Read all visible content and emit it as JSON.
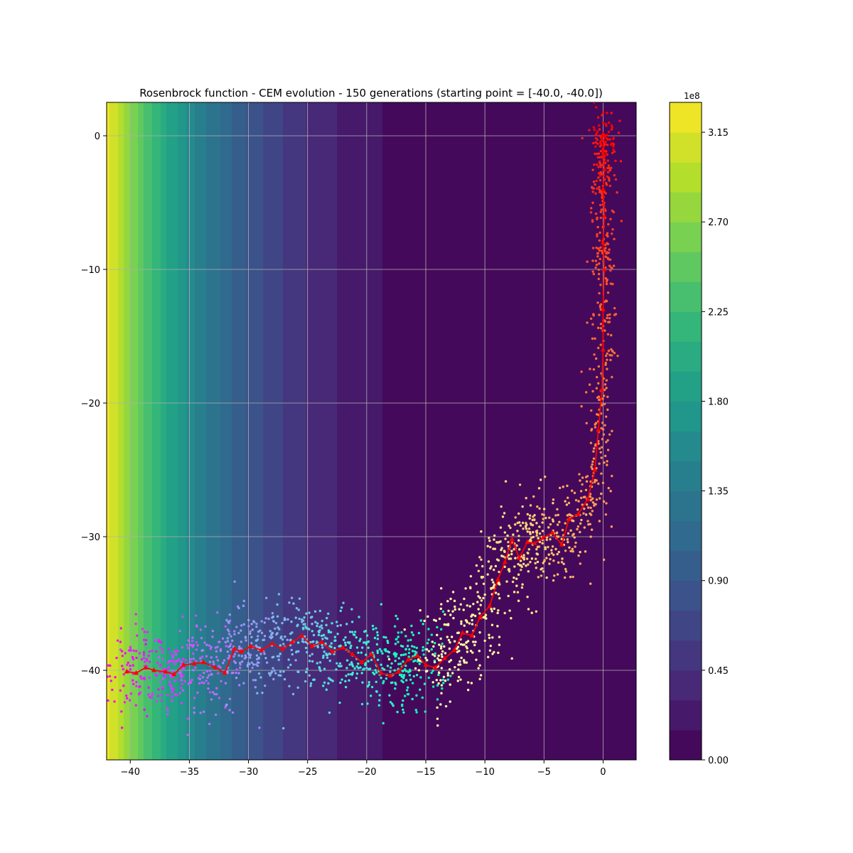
{
  "chart_data": {
    "type": "scatter",
    "title": "Rosenbrock function - CEM evolution - 150 generations (starting point = [-40.0, -40.0])",
    "xlabel": "",
    "ylabel": "",
    "xlim": [
      -42,
      2.8
    ],
    "ylim": [
      -46.7,
      2.5
    ],
    "x_ticks": [
      -40,
      -35,
      -30,
      -25,
      -20,
      -15,
      -10,
      -5,
      0
    ],
    "y_ticks": [
      0,
      -10,
      -20,
      -30,
      -40
    ],
    "grid": true,
    "background": "filled contour of the Rosenbrock function (viridis colormap)",
    "colorbar": {
      "exponent_label": "1e8",
      "range": [
        0,
        3.3
      ],
      "levels": 22,
      "ticks": [
        0.0,
        0.45,
        0.9,
        1.35,
        1.8,
        2.25,
        2.7,
        3.15
      ],
      "tick_labels": [
        "0.00",
        "0.45",
        "0.90",
        "1.35",
        "1.80",
        "2.25",
        "2.70",
        "3.15"
      ]
    },
    "series": [
      {
        "role": "mean trajectory",
        "color": "#ff0000",
        "x": [
          -40.3,
          -39.5,
          -38.7,
          -38.0,
          -37.0,
          -36.3,
          -35.5,
          -34.6,
          -33.8,
          -32.8,
          -32.0,
          -31.2,
          -30.6,
          -29.8,
          -28.9,
          -28.0,
          -27.1,
          -26.3,
          -25.5,
          -24.6,
          -23.8,
          -22.9,
          -22.0,
          -21.2,
          -20.4,
          -19.6,
          -18.8,
          -18.0,
          -17.3,
          -16.5,
          -15.7,
          -15.0,
          -14.2,
          -13.4,
          -12.6,
          -11.9,
          -11.1,
          -10.4,
          -9.6,
          -8.9,
          -8.3,
          -7.7,
          -7.1,
          -6.4,
          -5.8,
          -5.1,
          -4.3,
          -3.5,
          -2.9,
          -2.1,
          -1.3,
          -0.7,
          -0.4,
          -0.1,
          0.0,
          0.0,
          0.1,
          0.0,
          0.1,
          0.0,
          0.1,
          0.0,
          0.1,
          0.0
        ],
        "y": [
          -40.1,
          -40.2,
          -39.8,
          -40.0,
          -40.1,
          -40.3,
          -39.6,
          -39.5,
          -39.4,
          -39.8,
          -40.2,
          -38.4,
          -38.6,
          -38.2,
          -38.5,
          -38.0,
          -38.4,
          -37.9,
          -37.4,
          -38.2,
          -37.9,
          -38.6,
          -38.3,
          -38.8,
          -39.4,
          -38.8,
          -40.2,
          -40.4,
          -40.1,
          -39.2,
          -38.9,
          -39.6,
          -39.8,
          -39.1,
          -38.5,
          -37.2,
          -37.4,
          -36.0,
          -35.2,
          -33.2,
          -31.9,
          -30.2,
          -31.6,
          -30.4,
          -30.5,
          -30.1,
          -29.7,
          -30.6,
          -28.7,
          -28.3,
          -27.2,
          -25.0,
          -22.0,
          -19.0,
          -16.0,
          -13.0,
          -10.0,
          -8.0,
          -6.0,
          -4.0,
          -2.5,
          -1.0,
          0.0,
          0.1
        ]
      },
      {
        "role": "sampled population (colour by generation)",
        "colormap": "rainbow",
        "generations": 150
      }
    ]
  }
}
